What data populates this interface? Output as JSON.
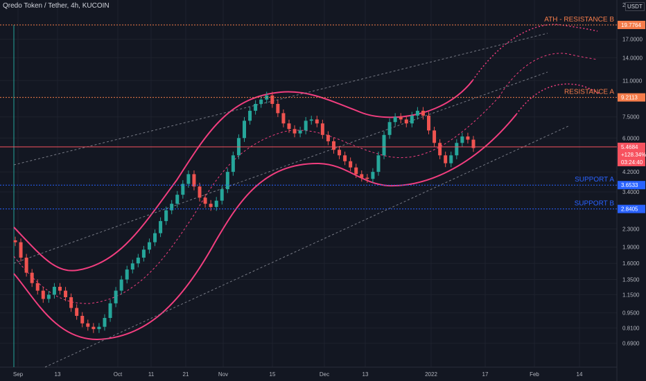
{
  "header": {
    "title": "Qredo Token / Tether, 4h, KUCOIN",
    "currency": "USDT",
    "top_partial_tick": "2"
  },
  "chart_data": {
    "type": "candlestick",
    "y_scale": "log",
    "y_range": [
      0.62,
      22
    ],
    "y_ticks": [
      "17.0000",
      "14.0000",
      "11.0000",
      "7.5000",
      "6.0000",
      "4.2000",
      "3.4000",
      "2.3000",
      "1.9000",
      "1.6000",
      "1.3500",
      "1.1500",
      "0.9500",
      "0.8100",
      "0.6900"
    ],
    "x_ticks": [
      "Sep",
      "13",
      "Oct",
      "11",
      "21",
      "Nov",
      "15",
      "Dec",
      "13",
      "2022",
      "17",
      "Feb",
      "14"
    ],
    "levels": [
      {
        "name": "ATH - RESISTANCE B",
        "value": 19.7764,
        "tag": "19.7764",
        "color": "#f57c4a"
      },
      {
        "name": "RESISTANCE A",
        "value": 9.2113,
        "tag": "9.2113",
        "color": "#f57c4a"
      },
      {
        "name": "SUPPORT A",
        "value": 3.6533,
        "tag": "3.6533",
        "color": "#2962ff"
      },
      {
        "name": "SUPPORT B",
        "value": 2.8405,
        "tag": "2.8405",
        "color": "#2962ff"
      }
    ],
    "current": {
      "price": "5.4684",
      "change": "+128.34%",
      "countdown": "03:24:40",
      "value": 5.4684,
      "color": "#f7525f"
    },
    "series": [
      {
        "values": [
          2.0,
          1.7,
          1.45,
          1.3,
          1.2,
          1.1,
          1.15,
          1.25,
          1.2,
          1.12,
          1.0,
          0.92,
          0.85,
          0.82,
          0.8,
          0.82,
          0.9,
          1.05,
          1.2,
          1.35,
          1.5,
          1.6,
          1.7,
          1.85,
          2.0,
          2.2,
          2.5,
          2.8,
          3.0,
          3.3,
          3.7,
          4.1,
          3.6,
          3.2,
          3.0,
          2.9,
          3.1,
          3.5,
          4.2,
          5.0,
          6.0,
          7.2,
          8.0,
          8.6,
          9.0,
          9.4,
          8.6,
          7.8,
          7.0,
          6.6,
          6.3,
          6.5,
          7.2,
          7.3,
          7.0,
          6.2,
          5.8,
          5.3,
          5.0,
          4.7,
          4.4,
          4.1,
          3.95,
          3.9,
          4.2,
          5.0,
          6.2,
          7.1,
          7.5,
          7.3,
          7.0,
          7.6,
          8.0,
          7.6,
          6.5,
          5.7,
          5.0,
          4.6,
          5.0,
          5.7,
          6.1,
          5.9,
          5.4
        ]
      }
    ]
  }
}
